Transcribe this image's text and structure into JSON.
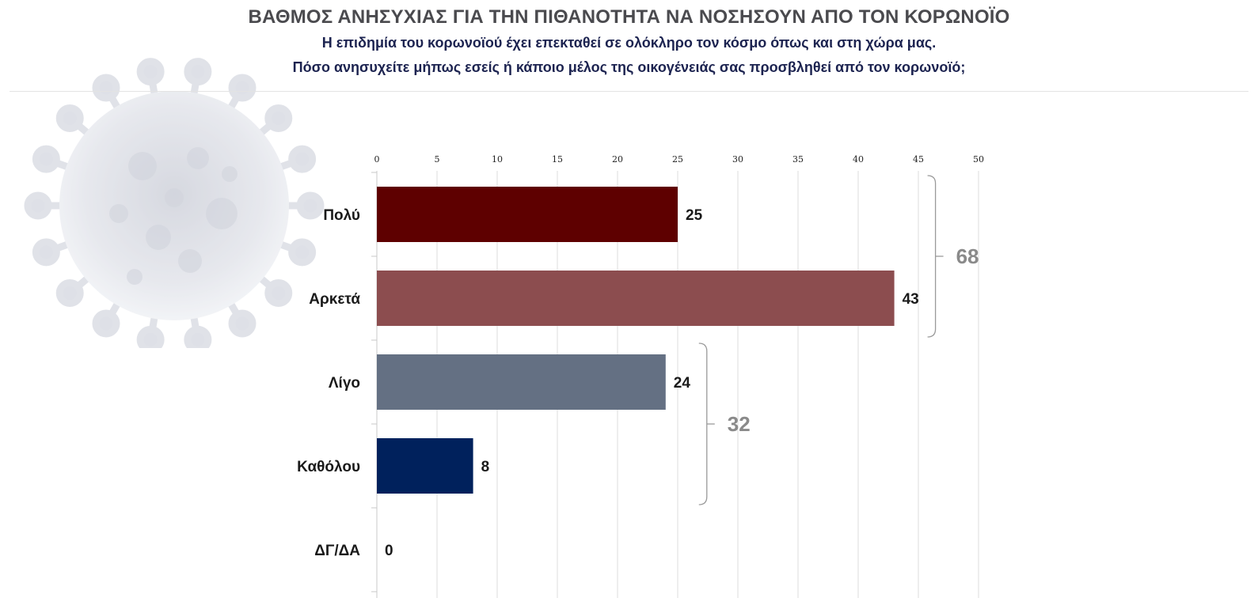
{
  "header": {
    "title": "ΒΑΘΜΟΣ ΑΝΗΣΥΧΙΑΣ ΓΙΑ ΤΗΝ ΠΙΘΑΝΟΤΗΤΑ ΝΑ ΝΟΣΗΣΟΥΝ ΑΠΟ ΤΟΝ ΚΟΡΩΝΟΪΟ",
    "subtitle_line1": "Η επιδημία του κορωνοϊού έχει επεκταθεί σε ολόκληρο τον κόσμο όπως και στη χώρα μας.",
    "subtitle_line2": "Πόσο ανησυχείτε μήπως εσείς ή κάποιο μέλος της οικογένειάς σας προσβληθεί από τον κορωνοϊό;"
  },
  "decoration": {
    "background_icon": "coronavirus-icon"
  },
  "chart_data": {
    "type": "bar",
    "orientation": "horizontal",
    "categories": [
      "Πολύ",
      "Αρκετά",
      "Λίγο",
      "Καθόλου",
      "ΔΓ/ΔΑ"
    ],
    "values": [
      25,
      43,
      24,
      8,
      0
    ],
    "colors": [
      "#5e0000",
      "#8c4d4f",
      "#647083",
      "#00215c",
      "#00215c"
    ],
    "xlim": [
      0,
      50
    ],
    "ticks": [
      0,
      5,
      10,
      15,
      20,
      25,
      30,
      35,
      40,
      45,
      50
    ],
    "tick_labels": [
      "0",
      "5",
      "10",
      "15",
      "20",
      "25",
      "30",
      "35",
      "40",
      "45",
      "50"
    ],
    "axis_position": "top",
    "grid": true,
    "legend": "none",
    "groups": [
      {
        "label": "68",
        "value": 68,
        "from": 0,
        "to": 1
      },
      {
        "label": "32",
        "value": 32,
        "from": 2,
        "to": 3
      }
    ],
    "title": "",
    "xlabel": "",
    "ylabel": ""
  }
}
